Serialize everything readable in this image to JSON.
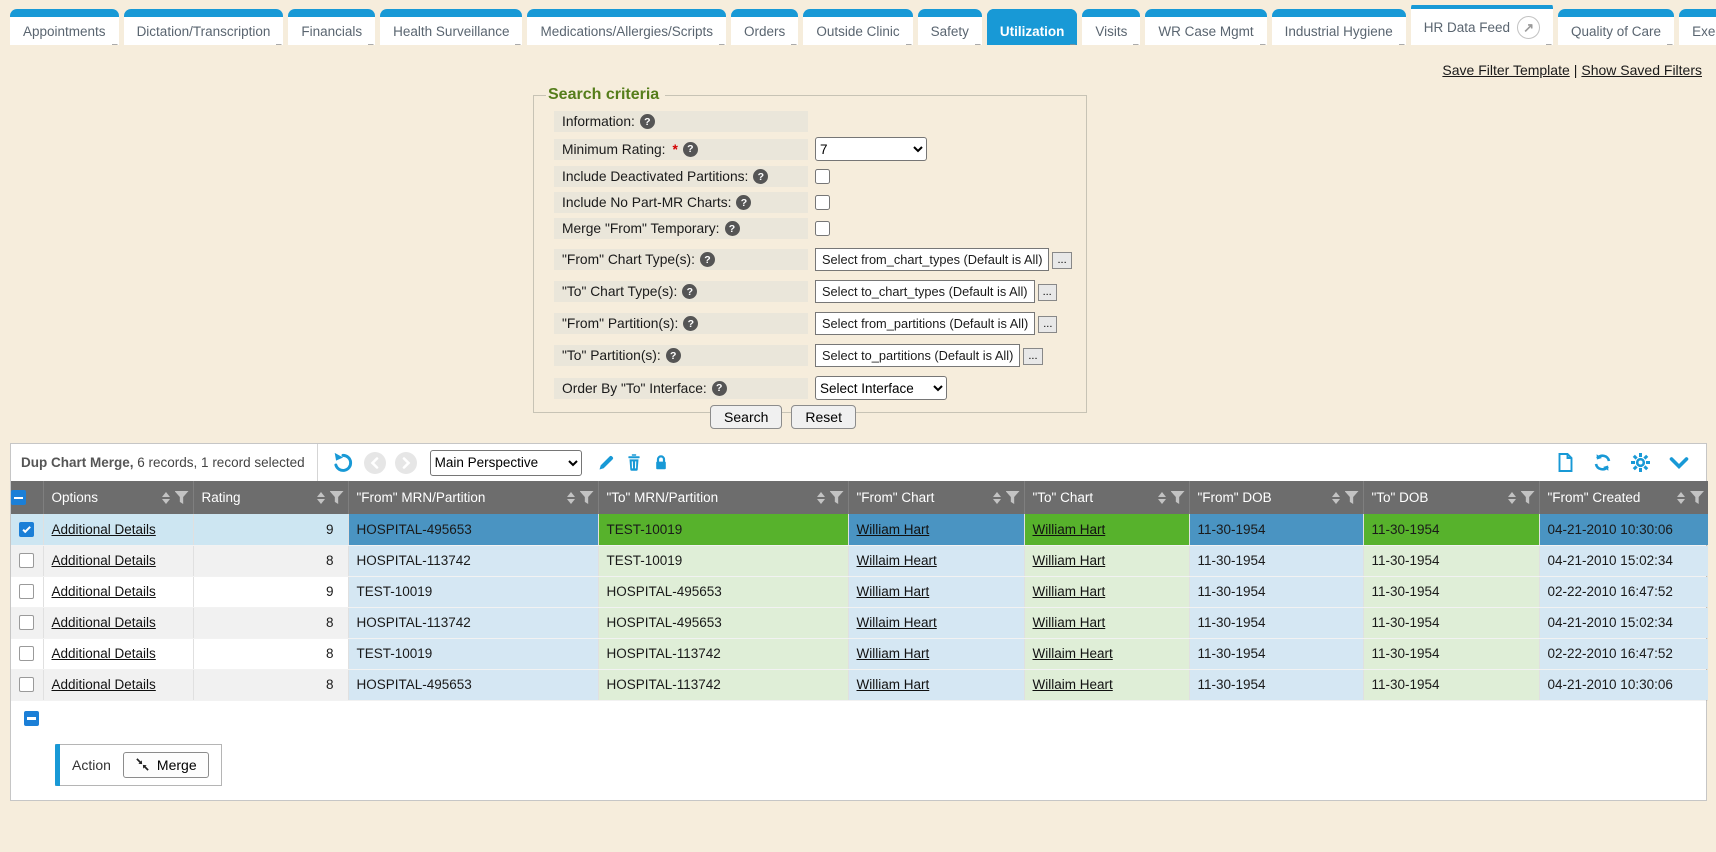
{
  "tabs": {
    "items": [
      {
        "label": "Appointments"
      },
      {
        "label": "Dictation/Transcription"
      },
      {
        "label": "Financials"
      },
      {
        "label": "Health Surveillance"
      },
      {
        "label": "Medications/Allergies/Scripts"
      },
      {
        "label": "Orders"
      },
      {
        "label": "Outside Clinic"
      },
      {
        "label": "Safety"
      },
      {
        "label": "Utilization",
        "active": true
      },
      {
        "label": "Visits"
      },
      {
        "label": "WR Case Mgmt"
      },
      {
        "label": "Industrial Hygiene"
      },
      {
        "label": "HR Data Feed",
        "trailing_icon": "external-link-circle-icon",
        "trailing_glyph": "↗"
      },
      {
        "label": "Quality of Care"
      },
      {
        "label": "Exec"
      }
    ]
  },
  "filter_links": {
    "save": "Save Filter Template",
    "separator": "|",
    "show": "Show Saved Filters"
  },
  "search": {
    "legend": "Search criteria",
    "required_marker": "*",
    "help_glyph": "?",
    "picker_button": "...",
    "rows": [
      {
        "label": "Information:",
        "control": "none"
      },
      {
        "label": "Minimum Rating:",
        "required": true,
        "control": "select",
        "value": "7"
      },
      {
        "label": "Include Deactivated Partitions:",
        "control": "checkbox",
        "checked": false
      },
      {
        "label": "Include No Part-MR Charts:",
        "control": "checkbox",
        "checked": false
      },
      {
        "label": "Merge \"From\" Temporary:",
        "control": "checkbox",
        "checked": false
      },
      {
        "label": "\"From\" Chart Type(s):",
        "control": "picker",
        "value": "Select from_chart_types (Default is All)"
      },
      {
        "label": "\"To\" Chart Type(s):",
        "control": "picker",
        "value": "Select to_chart_types (Default is All)"
      },
      {
        "label": "\"From\" Partition(s):",
        "control": "picker",
        "value": "Select from_partitions (Default is All)"
      },
      {
        "label": "\"To\" Partition(s):",
        "control": "picker",
        "value": "Select to_partitions (Default is All)"
      },
      {
        "label": "Order By \"To\" Interface:",
        "control": "select",
        "value": "Select Interface"
      }
    ],
    "buttons": {
      "search": "Search",
      "reset": "Reset"
    }
  },
  "grid": {
    "title": "Dup Chart Merge,",
    "status": "6 records, 1 record selected",
    "perspective": "Main Perspective",
    "toolbar_icons_left": [
      "undo-icon",
      "previous-icon",
      "next-icon",
      "pencil-icon",
      "trash-icon",
      "lock-icon"
    ],
    "toolbar_icons_right": [
      "new-document-icon",
      "refresh-icon",
      "gear-icon",
      "chevron-down-icon"
    ],
    "columns": [
      "Options",
      "Rating",
      "\"From\" MRN/Partition",
      "\"To\" MRN/Partition",
      "\"From\" Chart",
      "\"To\" Chart",
      "\"From\" DOB",
      "\"To\" DOB",
      "\"From\" Created"
    ],
    "rows": [
      {
        "selected": true,
        "options": "Additional Details",
        "rating": "9",
        "from_mrn": "HOSPITAL-495653",
        "to_mrn": "TEST-10019",
        "from_chart": "William Hart",
        "to_chart": "William Hart",
        "from_dob": "11-30-1954",
        "to_dob": "11-30-1954",
        "from_created": "04-21-2010 10:30:06"
      },
      {
        "selected": false,
        "options": "Additional Details",
        "rating": "8",
        "from_mrn": "HOSPITAL-113742",
        "to_mrn": "TEST-10019",
        "from_chart": "Willaim Heart",
        "to_chart": "William Hart",
        "from_dob": "11-30-1954",
        "to_dob": "11-30-1954",
        "from_created": "04-21-2010 15:02:34"
      },
      {
        "selected": false,
        "options": "Additional Details",
        "rating": "9",
        "from_mrn": "TEST-10019",
        "to_mrn": "HOSPITAL-495653",
        "from_chart": "William Hart",
        "to_chart": "William Hart",
        "from_dob": "11-30-1954",
        "to_dob": "11-30-1954",
        "from_created": "02-22-2010 16:47:52"
      },
      {
        "selected": false,
        "options": "Additional Details",
        "rating": "8",
        "from_mrn": "HOSPITAL-113742",
        "to_mrn": "HOSPITAL-495653",
        "from_chart": "Willaim Heart",
        "to_chart": "William Hart",
        "from_dob": "11-30-1954",
        "to_dob": "11-30-1954",
        "from_created": "04-21-2010 15:02:34"
      },
      {
        "selected": false,
        "options": "Additional Details",
        "rating": "8",
        "from_mrn": "TEST-10019",
        "to_mrn": "HOSPITAL-113742",
        "from_chart": "William Hart",
        "to_chart": "Willaim Heart",
        "from_dob": "11-30-1954",
        "to_dob": "11-30-1954",
        "from_created": "02-22-2010 16:47:52"
      },
      {
        "selected": false,
        "options": "Additional Details",
        "rating": "8",
        "from_mrn": "HOSPITAL-495653",
        "to_mrn": "HOSPITAL-113742",
        "from_chart": "William Hart",
        "to_chart": "Willaim Heart",
        "from_dob": "11-30-1954",
        "to_dob": "11-30-1954",
        "from_created": "04-21-2010 10:30:06"
      }
    ],
    "action": {
      "label": "Action",
      "merge": "Merge"
    }
  },
  "colors": {
    "accent_blue": "#1899d6",
    "checkbox_blue": "#1b7fd7",
    "header_gray": "#6d6d6d",
    "legend_green": "#557d1b",
    "page_beige": "#f6eddc",
    "selected_from_blue": "#4a94c2",
    "selected_to_green": "#57b22c",
    "from_light_blue": "#d5e7f3",
    "to_light_green": "#dfeed7"
  }
}
